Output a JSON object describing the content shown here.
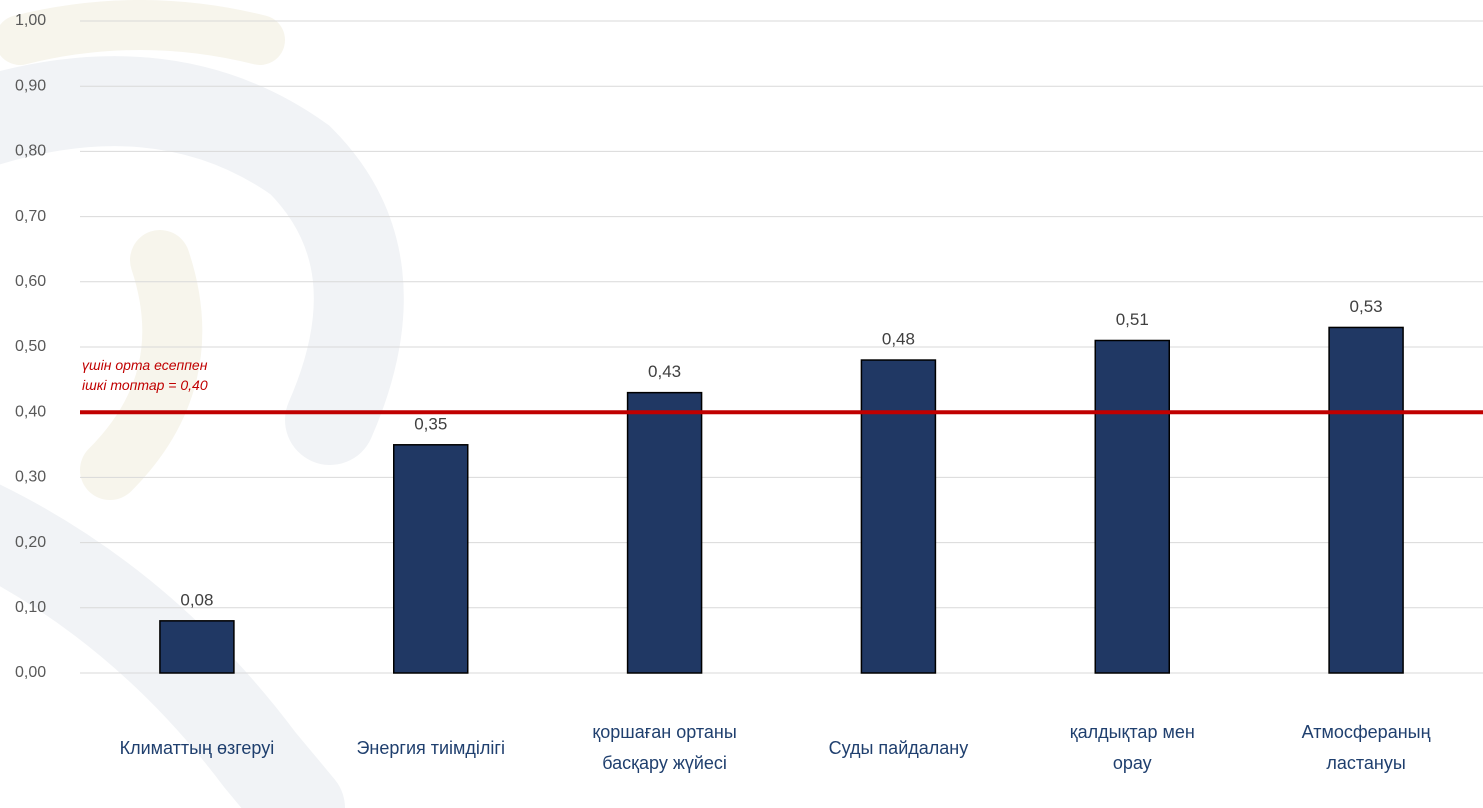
{
  "chart_data": {
    "type": "bar",
    "categories": [
      "Климаттың өзгеруі",
      "Энергия тиімділігі",
      "қоршаған ортаны басқару жүйесі",
      "Суды пайдалану",
      "қалдықтар мен орау",
      "Атмосфераның ластануы"
    ],
    "values": [
      0.08,
      0.35,
      0.43,
      0.48,
      0.51,
      0.53
    ],
    "value_labels": [
      "0,08",
      "0,35",
      "0,43",
      "0,48",
      "0,51",
      "0,53"
    ],
    "color": "#203864",
    "ylim": [
      0,
      1
    ],
    "yticks": [
      {
        "value": 0,
        "label": "0,00"
      },
      {
        "value": 0.1,
        "label": "0,10"
      },
      {
        "value": 0.2,
        "label": "0,20"
      },
      {
        "value": 0.3,
        "label": "0,30"
      },
      {
        "value": 0.4,
        "label": "0,40"
      },
      {
        "value": 0.5,
        "label": "0,50"
      },
      {
        "value": 0.6,
        "label": "0,60"
      },
      {
        "value": 0.7,
        "label": "0,70"
      },
      {
        "value": 0.8,
        "label": "0,80"
      },
      {
        "value": 0.9,
        "label": "0,90"
      },
      {
        "value": 1,
        "label": "1,00"
      }
    ],
    "grid": true,
    "reference_line": {
      "value": 0.4,
      "color": "#c00000",
      "label_lines": [
        "үшін орта есеппен",
        "ішкі топтар = 0,40"
      ]
    }
  }
}
